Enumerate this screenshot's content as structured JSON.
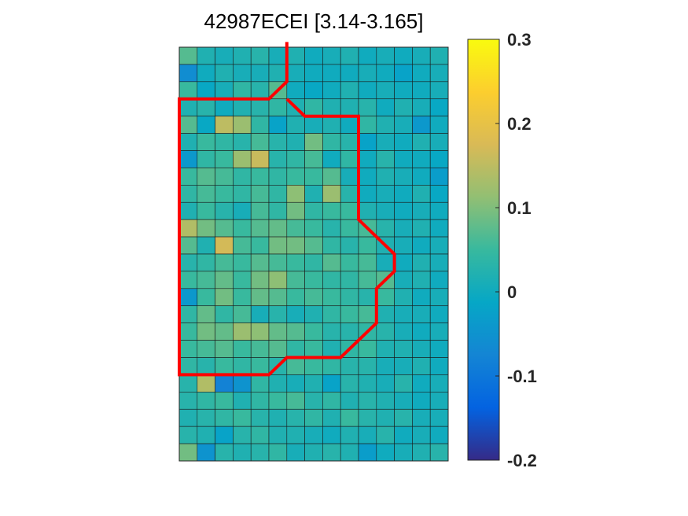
{
  "chart_data": {
    "type": "heatmap",
    "title": "42987ECEI [3.14-3.165]",
    "rows": 24,
    "cols": 15,
    "clim": [
      -0.2,
      0.3
    ],
    "colormap": "parula",
    "colorbar": {
      "ticks": [
        -0.2,
        -0.1,
        0,
        0.1,
        0.2,
        0.3
      ],
      "tick_labels": [
        "-0.2",
        "-0.1",
        "0",
        "0.1",
        "0.2",
        "0.3"
      ]
    },
    "values": [
      [
        0.07,
        0.02,
        0.01,
        0.02,
        0.03,
        0.01,
        0.02,
        0.0,
        0.01,
        0.02,
        0.0,
        0.01,
        0.0,
        0.01,
        0.02
      ],
      [
        -0.06,
        0.0,
        0.02,
        0.01,
        0.01,
        0.02,
        0.01,
        0.0,
        0.0,
        0.0,
        0.01,
        0.0,
        -0.02,
        0.0,
        0.01
      ],
      [
        0.05,
        -0.01,
        0.01,
        0.04,
        0.03,
        0.07,
        0.0,
        -0.01,
        0.0,
        0.02,
        0.0,
        0.01,
        0.0,
        0.0,
        0.01
      ],
      [
        0.02,
        0.03,
        0.0,
        0.02,
        0.03,
        0.04,
        0.02,
        0.04,
        0.02,
        0.02,
        0.03,
        0.0,
        0.02,
        0.01,
        -0.01
      ],
      [
        0.07,
        -0.01,
        0.15,
        0.12,
        0.04,
        -0.02,
        0.02,
        0.01,
        0.02,
        0.0,
        0.04,
        0.02,
        0.01,
        -0.04,
        0.0
      ],
      [
        0.02,
        0.05,
        0.04,
        0.03,
        0.06,
        0.03,
        0.02,
        0.09,
        0.04,
        0.03,
        -0.02,
        0.01,
        0.0,
        0.02,
        0.01
      ],
      [
        -0.04,
        0.04,
        0.05,
        0.12,
        0.16,
        0.03,
        0.04,
        0.06,
        0.0,
        0.04,
        0.0,
        0.03,
        0.0,
        0.0,
        -0.01
      ],
      [
        0.05,
        0.07,
        0.06,
        0.04,
        0.05,
        0.04,
        0.05,
        0.05,
        0.07,
        0.01,
        0.0,
        0.02,
        0.01,
        0.0,
        -0.03
      ],
      [
        0.04,
        0.06,
        0.05,
        0.04,
        0.06,
        0.04,
        0.11,
        0.02,
        0.12,
        0.03,
        0.0,
        0.01,
        0.0,
        0.02,
        -0.01
      ],
      [
        0.02,
        0.05,
        0.03,
        0.01,
        0.06,
        0.04,
        0.09,
        0.04,
        0.05,
        0.05,
        0.02,
        0.01,
        0.0,
        0.01,
        0.0
      ],
      [
        0.14,
        0.09,
        0.07,
        0.05,
        0.07,
        0.08,
        0.06,
        0.05,
        0.03,
        0.05,
        0.06,
        0.03,
        0.01,
        0.02,
        0.0
      ],
      [
        0.07,
        0.02,
        0.17,
        0.06,
        0.05,
        0.09,
        0.09,
        0.07,
        0.04,
        0.03,
        0.05,
        0.02,
        0.01,
        0.0,
        0.01
      ],
      [
        0.03,
        0.04,
        0.06,
        0.05,
        0.07,
        0.06,
        0.05,
        0.04,
        0.07,
        0.05,
        0.06,
        0.01,
        0.0,
        0.02,
        0.01
      ],
      [
        0.05,
        0.06,
        0.08,
        0.05,
        0.09,
        0.11,
        0.06,
        0.05,
        0.04,
        0.04,
        0.06,
        0.07,
        0.01,
        0.02,
        0.0
      ],
      [
        -0.04,
        0.05,
        0.09,
        0.05,
        0.08,
        0.07,
        0.05,
        0.06,
        0.05,
        0.04,
        0.03,
        0.05,
        0.02,
        0.0,
        0.01
      ],
      [
        0.04,
        0.08,
        0.04,
        0.06,
        0.01,
        0.03,
        0.01,
        0.02,
        0.04,
        0.05,
        0.06,
        0.02,
        0.01,
        0.01,
        0.0
      ],
      [
        0.05,
        0.09,
        0.08,
        0.12,
        0.11,
        0.08,
        0.07,
        0.05,
        0.03,
        0.03,
        0.04,
        0.03,
        0.01,
        0.0,
        0.01
      ],
      [
        0.05,
        0.06,
        0.07,
        0.05,
        0.06,
        0.07,
        0.04,
        0.05,
        0.02,
        0.04,
        0.05,
        0.02,
        0.02,
        0.01,
        0.0
      ],
      [
        0.04,
        0.03,
        0.05,
        0.04,
        0.05,
        0.03,
        0.06,
        0.05,
        0.04,
        0.03,
        0.03,
        0.01,
        0.01,
        0.02,
        0.0
      ],
      [
        0.03,
        0.14,
        -0.08,
        -0.05,
        0.04,
        0.02,
        0.01,
        0.02,
        -0.02,
        0.03,
        0.02,
        0.01,
        0.03,
        0.0,
        0.01
      ],
      [
        0.03,
        0.04,
        0.05,
        0.02,
        0.04,
        0.05,
        0.06,
        0.03,
        0.04,
        0.02,
        0.03,
        0.02,
        0.01,
        0.0,
        0.01
      ],
      [
        0.02,
        0.03,
        0.04,
        0.05,
        0.03,
        0.02,
        0.03,
        0.04,
        0.02,
        0.05,
        0.03,
        0.02,
        0.03,
        0.01,
        0.01
      ],
      [
        0.03,
        0.02,
        -0.02,
        0.03,
        0.04,
        0.02,
        0.02,
        0.01,
        0.0,
        0.02,
        0.01,
        0.03,
        0.0,
        0.01,
        0.0
      ],
      [
        0.09,
        -0.05,
        0.03,
        0.02,
        0.03,
        0.04,
        0.01,
        0.02,
        0.03,
        0.02,
        -0.03,
        0.0,
        0.01,
        0.02,
        0.03
      ]
    ],
    "boundary_contour": {
      "color": "#ff0000",
      "points_cell_units": [
        [
          6,
          -0.3
        ],
        [
          6,
          2
        ],
        [
          5,
          3
        ],
        [
          0,
          3
        ],
        [
          0,
          19
        ],
        [
          5,
          19
        ],
        [
          6,
          18
        ],
        [
          9,
          18
        ],
        [
          11,
          16
        ],
        [
          11,
          14
        ],
        [
          12,
          13
        ],
        [
          12,
          12
        ],
        [
          10,
          10
        ],
        [
          10,
          4
        ],
        [
          7,
          4
        ],
        [
          6,
          3
        ]
      ]
    }
  }
}
